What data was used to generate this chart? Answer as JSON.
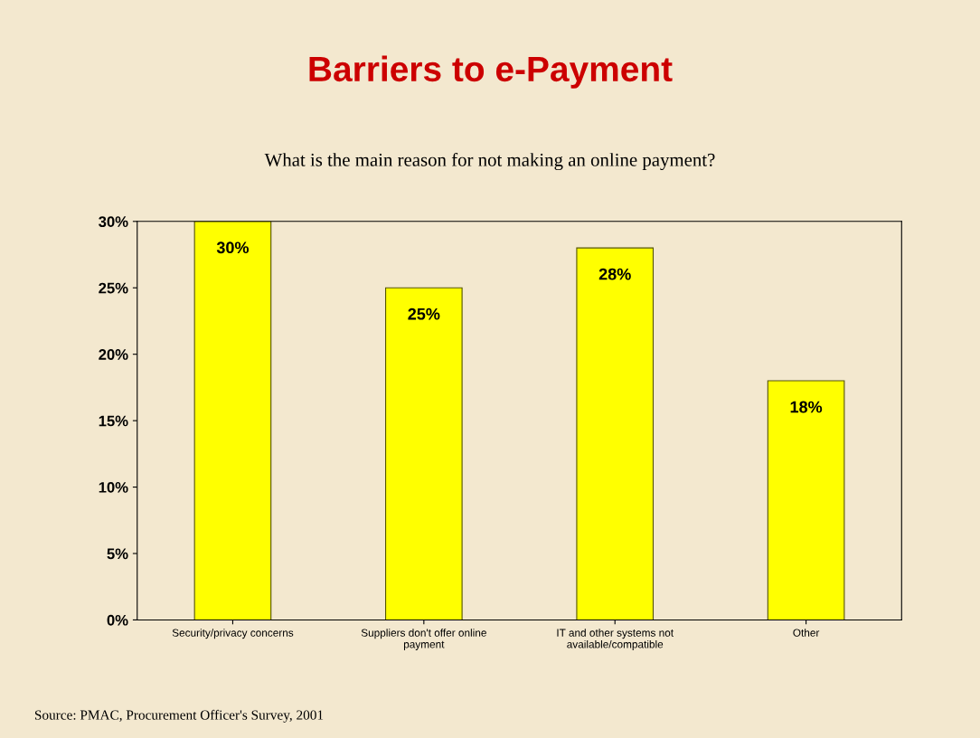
{
  "chart_data": {
    "type": "bar",
    "title": "Barriers to e-Payment",
    "subtitle": "What is the main reason for not making an online payment?",
    "categories": [
      "Security/privacy concerns",
      "Suppliers don't offer online payment",
      "IT and other systems not available/compatible",
      "Other"
    ],
    "values": [
      30,
      25,
      28,
      18
    ],
    "value_labels": [
      "30%",
      "25%",
      "28%",
      "18%"
    ],
    "color": "#ffff00",
    "ylim": [
      0,
      30
    ],
    "yticks": [
      {
        "value": 0,
        "label": "0%"
      },
      {
        "value": 5,
        "label": "5%"
      },
      {
        "value": 10,
        "label": "10%"
      },
      {
        "value": 15,
        "label": "15%"
      },
      {
        "value": 20,
        "label": "20%"
      },
      {
        "value": 25,
        "label": "25%"
      },
      {
        "value": 30,
        "label": "30%"
      }
    ],
    "grid": false,
    "annotations": [
      "Source: PMAC, Procurement Officer's Survey, 2001"
    ]
  }
}
